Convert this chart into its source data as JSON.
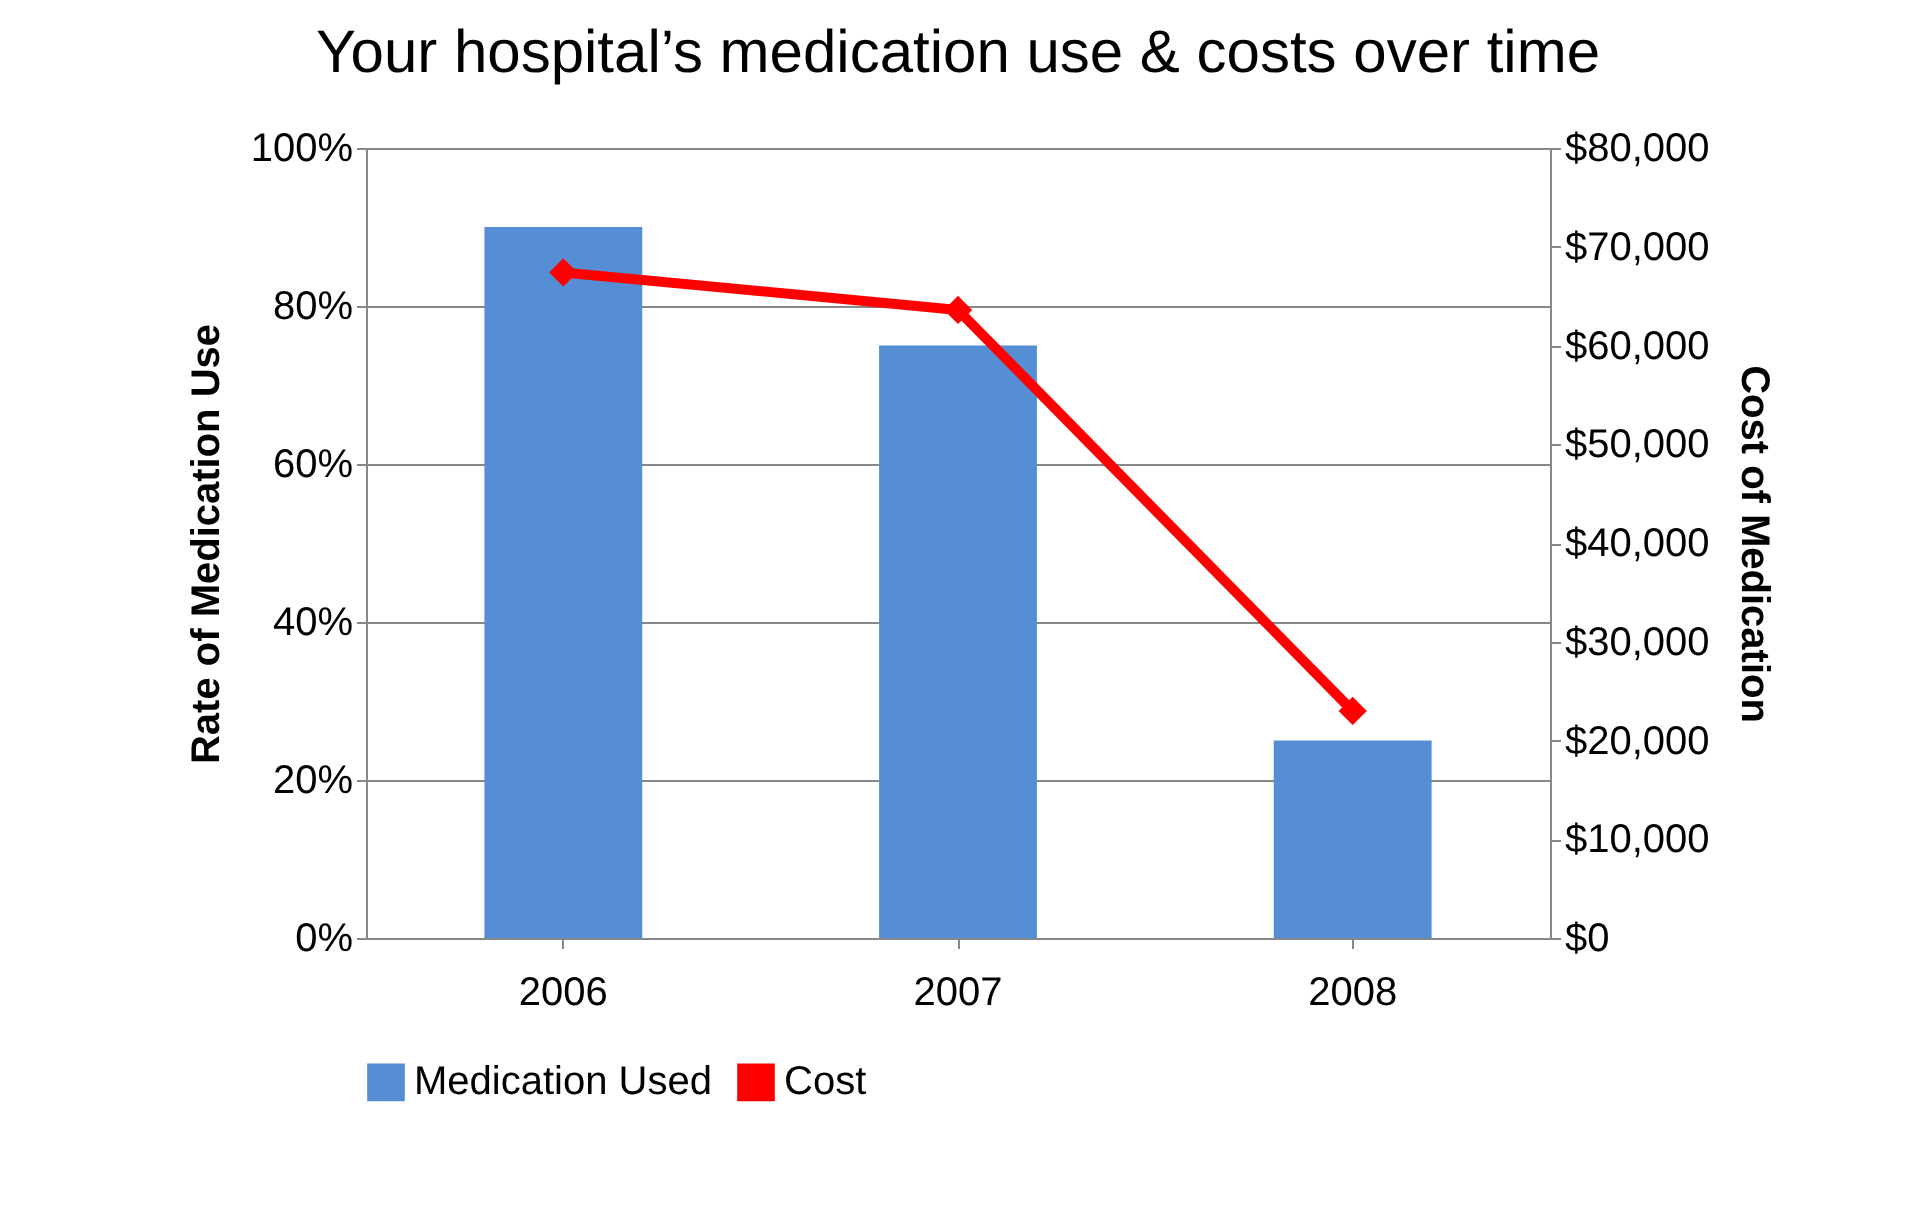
{
  "chart_data": {
    "type": "bar",
    "title": "Your hospital’s medication use & costs over time",
    "categories": [
      "2006",
      "2007",
      "2008"
    ],
    "ylabel": "Rate of Medication Use",
    "y2label": "Cost of Medication",
    "ylim": [
      0,
      100
    ],
    "yticks": [
      {
        "value": 0,
        "label": "0%"
      },
      {
        "value": 20,
        "label": "20%"
      },
      {
        "value": 40,
        "label": "40%"
      },
      {
        "value": 60,
        "label": "60%"
      },
      {
        "value": 80,
        "label": "80%"
      },
      {
        "value": 100,
        "label": "100%"
      }
    ],
    "y2lim": [
      0,
      80000
    ],
    "y2ticks": [
      {
        "value": 0,
        "label": "$0"
      },
      {
        "value": 10000,
        "label": "$10,000"
      },
      {
        "value": 20000,
        "label": "$20,000"
      },
      {
        "value": 30000,
        "label": "$30,000"
      },
      {
        "value": 40000,
        "label": "$40,000"
      },
      {
        "value": 50000,
        "label": "$50,000"
      },
      {
        "value": 60000,
        "label": "$60,000"
      },
      {
        "value": 70000,
        "label": "$70,000"
      },
      {
        "value": 80000,
        "label": "$80,000"
      }
    ],
    "series": [
      {
        "name": "Medication Used",
        "color": "#558ed5",
        "values": [
          90,
          75,
          25
        ]
      },
      {
        "name": "Cost",
        "type": "line",
        "axis": "y2",
        "color": "#ff0000",
        "values": [
          67400,
          63600,
          23000
        ]
      }
    ],
    "marker": "diamond",
    "grid": "y",
    "legend": "bottom"
  }
}
